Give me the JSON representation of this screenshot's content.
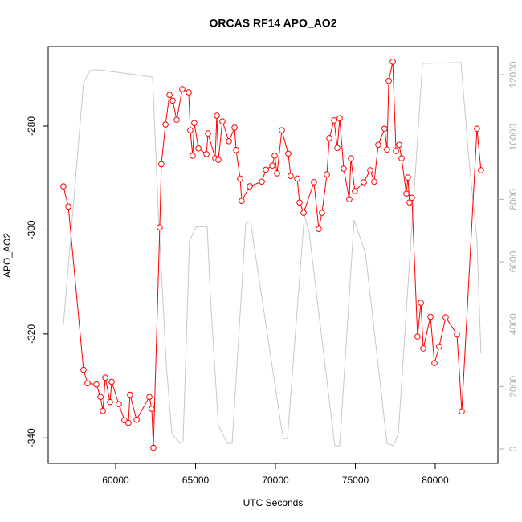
{
  "chart_data": {
    "type": "line",
    "title": "ORCAS RF14 APO_AO2",
    "x_label": "UTC Seconds",
    "y_label": "APO_AO2",
    "xlim": [
      55779,
      83920
    ],
    "xticks": [
      60000,
      65000,
      70000,
      75000,
      80000
    ],
    "ylim": [
      -344.9,
      -264.7
    ],
    "yticks": [
      -340,
      -320,
      -300,
      -280
    ],
    "y2lim": [
      -464,
      12901
    ],
    "y2ticks": [
      0,
      2000,
      4000,
      6000,
      8000,
      10000,
      12000
    ],
    "series": [
      {
        "color": "#c8c8c8",
        "axis": "y2",
        "markers": false,
        "x": [
          56730,
          57990,
          58390,
          58790,
          61560,
          62310,
          62710,
          63170,
          63520,
          64020,
          64220,
          64620,
          65030,
          65730,
          65930,
          66430,
          66980,
          67290,
          68140,
          68440,
          70350,
          70500,
          70750,
          71810,
          72110,
          73620,
          73720,
          74020,
          74920,
          75630,
          76980,
          77390,
          77690,
          79200,
          81610,
          82110,
          82610,
          82860
        ],
        "values": [
          3970,
          11740,
          12130,
          12160,
          11980,
          11920,
          7190,
          2680,
          490,
          180,
          230,
          6670,
          7110,
          7130,
          4870,
          750,
          180,
          180,
          7240,
          7290,
          750,
          330,
          330,
          7490,
          6930,
          490,
          100,
          100,
          7340,
          6280,
          180,
          100,
          490,
          12360,
          12390,
          9250,
          6670,
          3060
        ]
      },
      {
        "color": "#ff0000",
        "axis": "y",
        "markers": true,
        "x": [
          56730,
          57040,
          57990,
          58240,
          58790,
          59050,
          59200,
          59350,
          59650,
          59750,
          60200,
          60550,
          60800,
          60900,
          61310,
          62110,
          62260,
          62360,
          62760,
          62860,
          63120,
          63370,
          63570,
          63820,
          64170,
          64570,
          64670,
          64820,
          64920,
          65180,
          65680,
          65780,
          66230,
          66330,
          66430,
          66680,
          67090,
          67440,
          67540,
          67790,
          67890,
          68390,
          69150,
          69400,
          69800,
          69950,
          70100,
          70400,
          70800,
          70950,
          71360,
          71510,
          71760,
          72410,
          72710,
          72910,
          73220,
          73370,
          73670,
          73870,
          74020,
          74270,
          74620,
          74720,
          74970,
          75530,
          75930,
          76180,
          76430,
          76830,
          76980,
          77090,
          77340,
          77540,
          77740,
          77890,
          78190,
          78290,
          78390,
          78540,
          78890,
          79100,
          79250,
          79700,
          79950,
          80250,
          80650,
          81360,
          81660,
          82610,
          82860
        ],
        "values": [
          -291.6,
          -295.5,
          -326.9,
          -329.5,
          -329.7,
          -332.1,
          -334.8,
          -328.4,
          -333.1,
          -329.2,
          -333.5,
          -336.6,
          -337.1,
          -331.7,
          -336.5,
          -332.1,
          -334.4,
          -341.9,
          -299.5,
          -287.3,
          -279.7,
          -274.0,
          -275.1,
          -278.8,
          -272.9,
          -273.5,
          -280.8,
          -285.7,
          -279.4,
          -284.3,
          -285.4,
          -281.4,
          -286.2,
          -278.0,
          -286.5,
          -279.1,
          -282.9,
          -280.3,
          -284.6,
          -290.1,
          -294.4,
          -291.6,
          -290.7,
          -288.4,
          -287.6,
          -285.7,
          -289.1,
          -280.8,
          -285.3,
          -289.6,
          -290.1,
          -294.7,
          -296.7,
          -290.8,
          -299.8,
          -296.7,
          -289.3,
          -282.3,
          -278.9,
          -284.2,
          -278.5,
          -288.2,
          -294.1,
          -286.2,
          -292.5,
          -290.8,
          -288.5,
          -290.7,
          -283.6,
          -280.5,
          -284.5,
          -271.3,
          -267.6,
          -284.8,
          -283.6,
          -286.2,
          -293.0,
          -289.9,
          -294.7,
          -293.8,
          -320.5,
          -314.0,
          -322.8,
          -316.7,
          -325.6,
          -322.4,
          -316.8,
          -320.1,
          -334.9,
          -280.5,
          -288.5
        ]
      }
    ]
  }
}
